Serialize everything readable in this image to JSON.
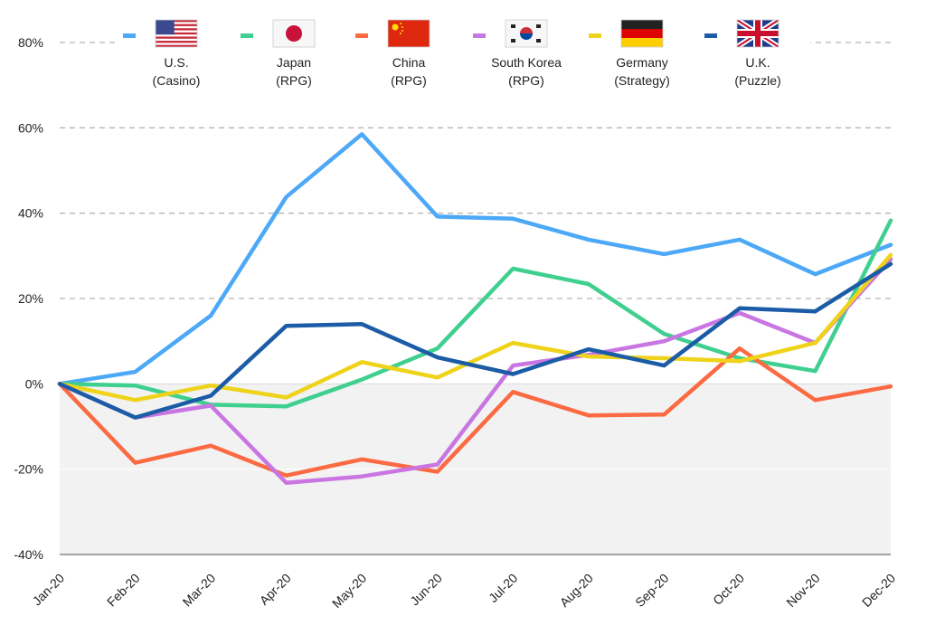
{
  "chart_data": {
    "type": "line",
    "title": "",
    "xlabel": "",
    "ylabel": "",
    "categories": [
      "Jan-20",
      "Feb-20",
      "Mar-20",
      "Apr-20",
      "May-20",
      "Jun-20",
      "Jul-20",
      "Aug-20",
      "Sep-20",
      "Oct-20",
      "Nov-20",
      "Dec-20"
    ],
    "ylim": [
      -40,
      80
    ],
    "yticks": [
      -40,
      -20,
      0,
      20,
      40,
      60,
      80
    ],
    "ytick_labels": [
      "-40%",
      "-20%",
      "0%",
      "20%",
      "40%",
      "60%",
      "80%"
    ],
    "grid": "horizontal dashed",
    "negative_region_shaded": true,
    "legend_placement": "top",
    "series": [
      {
        "name": "U.S.",
        "sub": "(Casino)",
        "flag": "us-flag",
        "color": "#4da8f7",
        "values": [
          0,
          2.8,
          16,
          43.8,
          58.5,
          39.2,
          38.7,
          33.8,
          30.4,
          33.8,
          25.7,
          32.6
        ]
      },
      {
        "name": "Japan",
        "sub": "(RPG)",
        "flag": "japan-flag",
        "color": "#3fcf8e",
        "values": [
          0,
          -0.4,
          -4.9,
          -5.3,
          1,
          8.3,
          27,
          23.4,
          11.7,
          6,
          3,
          38.3
        ]
      },
      {
        "name": "China",
        "sub": "(RPG)",
        "flag": "china-flag",
        "color": "#fb6a42",
        "values": [
          0,
          -18.5,
          -14.5,
          -21.5,
          -17.7,
          -20.6,
          -1.9,
          -7.4,
          -7.2,
          8.3,
          -3.8,
          -0.6
        ]
      },
      {
        "name": "South Korea",
        "sub": "(RPG)",
        "flag": "south-korea-flag",
        "color": "#c976e2",
        "values": [
          0,
          -7.9,
          -5.1,
          -23.2,
          -21.7,
          -18.9,
          4.3,
          6.8,
          10,
          16.6,
          9.6,
          29.2
        ]
      },
      {
        "name": "Germany",
        "sub": "(Strategy)",
        "flag": "germany-flag",
        "color": "#efd31a",
        "values": [
          0,
          -3.8,
          -0.4,
          -3.2,
          5.1,
          1.5,
          9.6,
          6.4,
          6,
          5.3,
          9.6,
          30.2
        ]
      },
      {
        "name": "U.K.",
        "sub": "(Puzzle)",
        "flag": "uk-flag",
        "color": "#1c5ca6",
        "values": [
          0,
          -7.9,
          -2.8,
          13.6,
          14,
          6.2,
          2.3,
          8.1,
          4.3,
          17.7,
          17,
          28.1
        ]
      }
    ]
  }
}
